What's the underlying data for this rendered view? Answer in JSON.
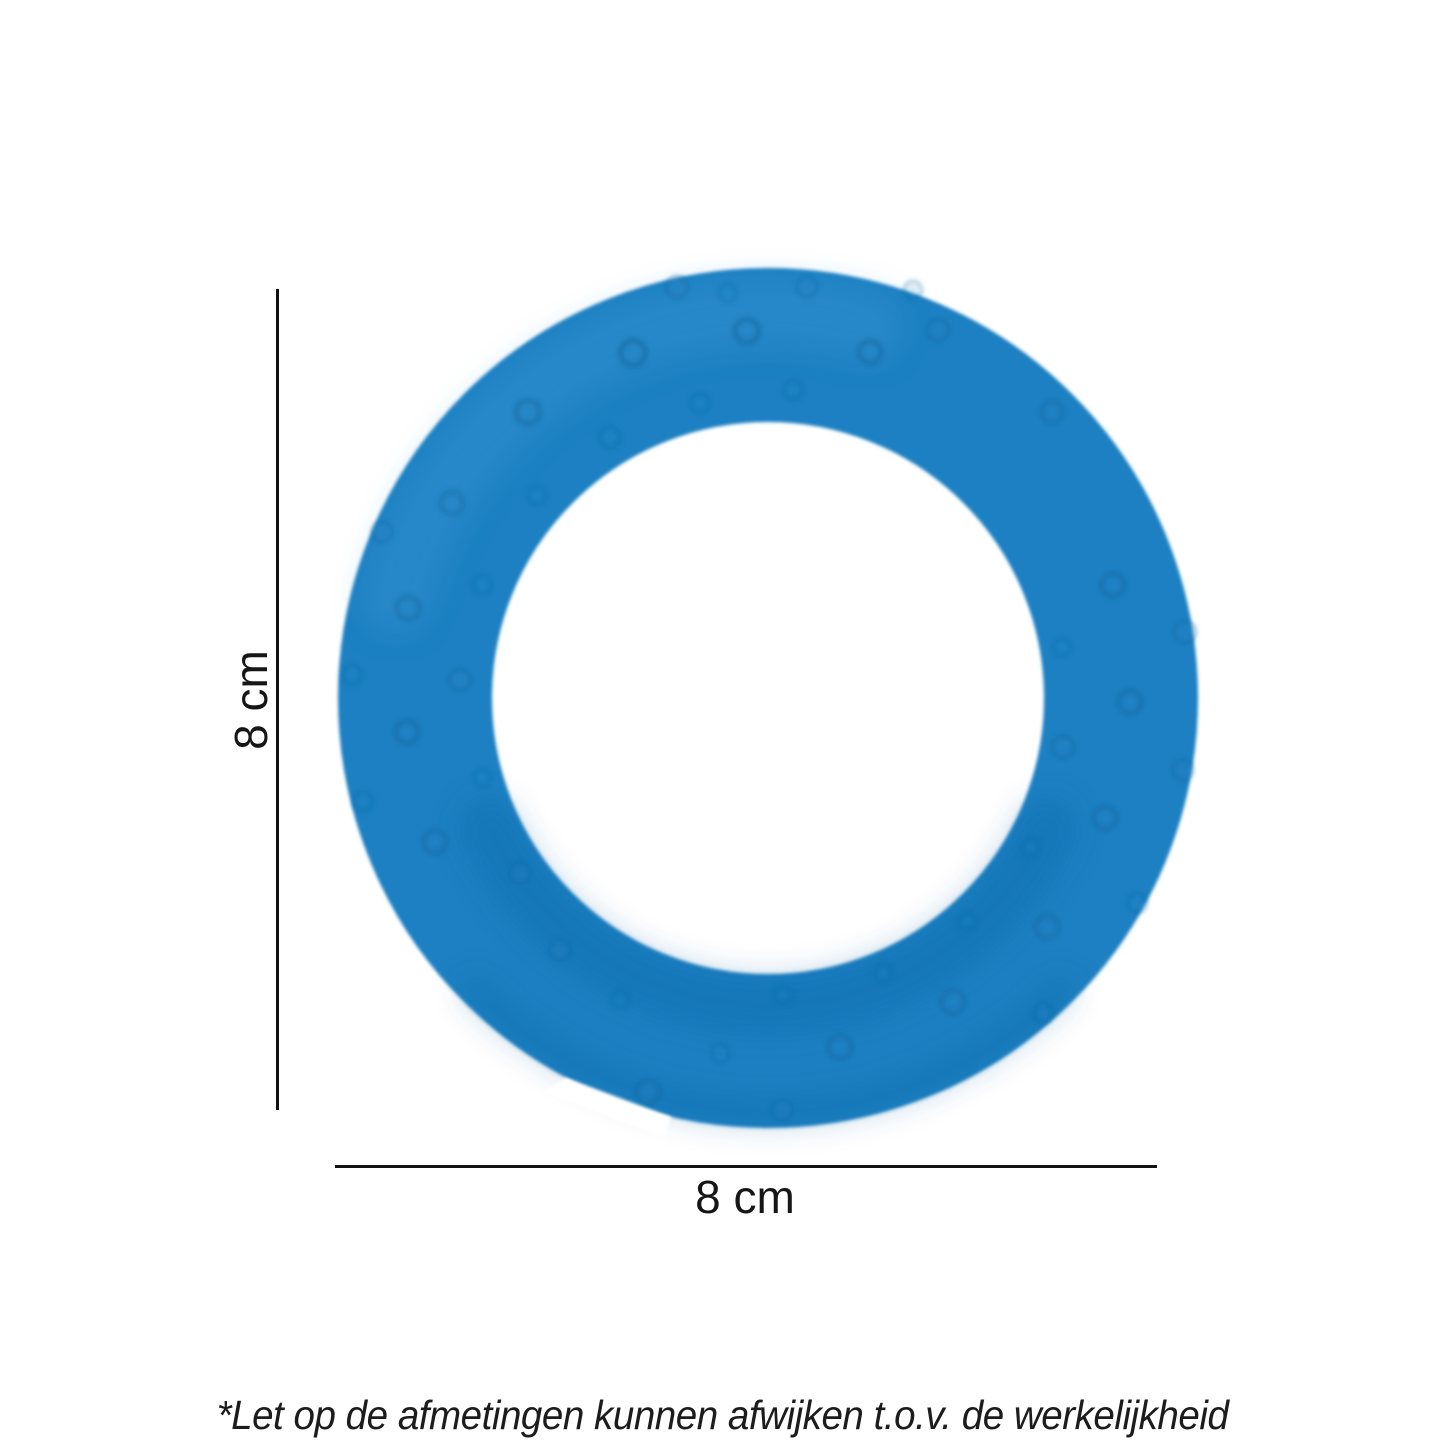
{
  "canvas": {
    "background": "#ffffff"
  },
  "diagram": {
    "height_dimension_label": "8 cm",
    "width_dimension_label": "8 cm",
    "disclaimer_text": "*Let op de afmetingen kunnen afwijken t.o.v. de werkelijkheid",
    "line_color": "#111111",
    "text_color": "#1a1a1a"
  },
  "product": {
    "name": "blue-textured-rubber-ring",
    "colors": {
      "base": "#1f80c2",
      "highlight": "#3e9ad8",
      "shadow_inner": "#10619e",
      "shadow_edge": "#0f5c97",
      "bump_light": "#2e8ccd",
      "bump_dark": "#14669f"
    }
  }
}
